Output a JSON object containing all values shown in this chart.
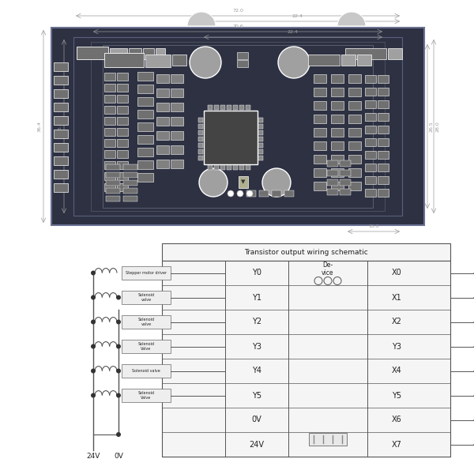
{
  "bg_color": "#ffffff",
  "pcb_bg": "#2d3142",
  "pcb_border": "#5a6080",
  "pcb_inner_border": "#4a5070",
  "component_light": "#c8c8c8",
  "component_mid": "#a0a0a0",
  "component_dark": "#707070",
  "component_outline": "#ffffff",
  "schematic_border": "#555555",
  "schematic_text": "#222222",
  "dim_color": "#888888",
  "title": "Transistor output wiring schematic",
  "y_labels": [
    "Y0",
    "Y1",
    "Y2",
    "Y3",
    "Y4",
    "Y5",
    "0V",
    "24V"
  ],
  "x_labels": [
    "X0",
    "X1",
    "X2",
    "Y3",
    "X4",
    "Y5",
    "X6",
    "X7"
  ],
  "left_labels": [
    "Stepper motor driver",
    "Solenoid\nvalve",
    "Solenoid\nvalve",
    "Solenoid\nValve",
    "Solenoid valve",
    "Solenoid\nValve"
  ],
  "bottom_labels": [
    "24V",
    "0V"
  ]
}
